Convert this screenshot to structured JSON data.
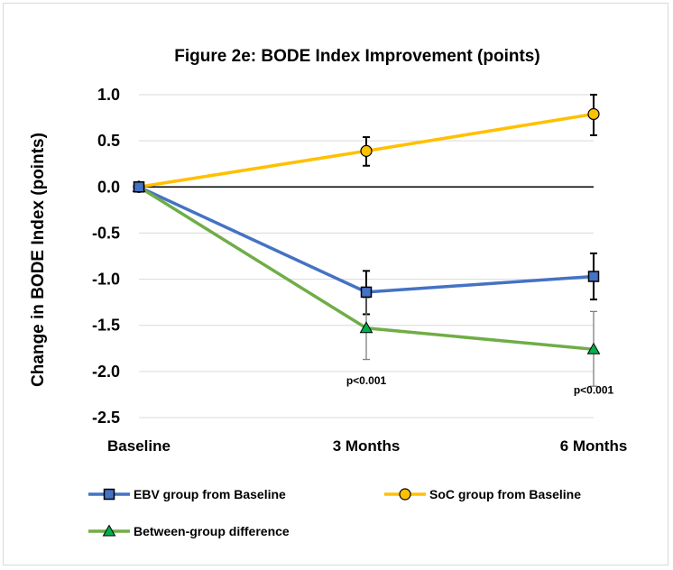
{
  "chart_data": {
    "type": "line",
    "title": "Figure 2e: BODE Index Improvement (points)",
    "ylabel": "Change in BODE Index (points)",
    "xlabel": "",
    "categories": [
      "Baseline",
      "3 Months",
      "6 Months"
    ],
    "ylim": [
      -2.5,
      1.0
    ],
    "yticks": [
      1.0,
      0.5,
      0.0,
      -0.5,
      -1.0,
      -1.5,
      -2.0,
      -2.5
    ],
    "ytick_labels": [
      "1.0",
      "0.5",
      "0.0",
      "-0.5",
      "-1.0",
      "-1.5",
      "-2.0",
      "-2.5"
    ],
    "grid": true,
    "legend_position": "bottom",
    "series": [
      {
        "name": "EBV group from Baseline",
        "values": [
          0.0,
          -1.14,
          -0.97
        ],
        "error_low": [
          null,
          -1.38,
          -1.22
        ],
        "error_high": [
          null,
          -0.91,
          -0.72
        ],
        "color": "#4472c4",
        "marker_fill": "#4472c4",
        "marker_stroke": "#000000",
        "marker": "square"
      },
      {
        "name": "SoC group from Baseline",
        "values": [
          0.0,
          0.39,
          0.79
        ],
        "error_low": [
          null,
          0.23,
          0.56
        ],
        "error_high": [
          null,
          0.54,
          1.0
        ],
        "color": "#ffc000",
        "marker_fill": "#ffc000",
        "marker_stroke": "#000000",
        "marker": "circle"
      },
      {
        "name": "Between-group difference",
        "values": [
          0.0,
          -1.53,
          -1.76
        ],
        "error_low": [
          null,
          -1.87,
          -2.16
        ],
        "error_high": [
          null,
          -1.2,
          -1.35
        ],
        "color": "#70ad47",
        "marker_fill": "#00b050",
        "marker_stroke": "#000000",
        "marker": "triangle",
        "error_color": "#7f7f7f"
      }
    ],
    "annotations": [
      {
        "text": "p<0.001",
        "category": "3 Months",
        "y": -2.1
      },
      {
        "text": "p<0.001",
        "category": "6 Months",
        "y": -2.2
      }
    ]
  }
}
